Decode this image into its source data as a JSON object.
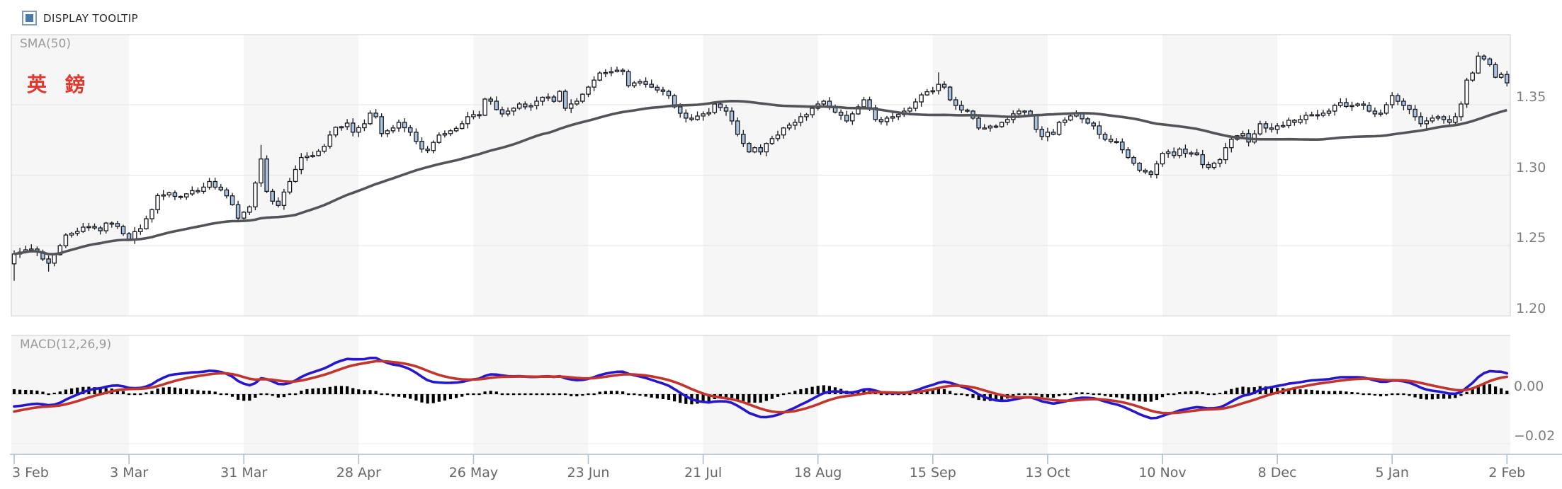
{
  "controls": {
    "tooltip_label": "DISPLAY TOOLTIP",
    "tooltip_checked": true
  },
  "chart": {
    "title": "英 鎊",
    "overlays": {
      "sma_label": "SMA(50)",
      "macd_label": "MACD(12,26,9)"
    },
    "price_axis": {
      "tick_labels": [
        "1.35",
        "1.30",
        "1.25",
        "1.20"
      ],
      "tick_values": [
        1.35,
        1.3,
        1.25,
        1.2
      ]
    },
    "macd_axis": {
      "tick_labels": [
        "0.00",
        "−0.02"
      ],
      "tick_values": [
        0,
        -0.02
      ]
    },
    "colors": {
      "up_candle": "#ffffff",
      "down_candle": "#a9c3e1",
      "candle_outline": "#17171f",
      "sma_line": "#53535a",
      "macd_line": "#2617cf",
      "signal_line": "#c3342c",
      "histogram": "#000000",
      "title_red": "#e4382e",
      "band_gray": "#f6f6f6",
      "grid": "#e4e4e4",
      "zero_line": "#c8c8c8",
      "panel_border": "#cfcfcf",
      "axis_line": "#c2cdd6",
      "tick_mark": "#aebecb",
      "checkbox_border": "#7c9cb8",
      "checkbox_fill": "#4a7aa8"
    }
  },
  "chart_data": {
    "type": "candlestick_with_macd",
    "instrument": "英 鎊",
    "trading_days": 261,
    "days_per_tick": 20,
    "price_ylim": [
      1.1995,
      1.3997
    ],
    "macd_ylim": [
      -0.0243,
      0.0237
    ],
    "price_gridlines": [
      1.35,
      1.3,
      1.25,
      1.2
    ],
    "macd_gridlines": [
      0,
      -0.02
    ],
    "x_tick_labels": [
      "3 Feb",
      "3 Mar",
      "31 Mar",
      "28 Apr",
      "26 May",
      "23 Jun",
      "21 Jul",
      "18 Aug",
      "15 Sep",
      "13 Oct",
      "10 Nov",
      "8 Dec",
      "5 Jan",
      "2 Feb"
    ],
    "indicators": {
      "sma_period": 50,
      "macd_fast": 12,
      "macd_slow": 26,
      "macd_signal": 9
    },
    "close_keypoints": [
      [
        0,
        1.244
      ],
      [
        2,
        1.247
      ],
      [
        4,
        1.2455
      ],
      [
        5,
        1.2405
      ],
      [
        6,
        1.2375
      ],
      [
        7,
        1.2435
      ],
      [
        9,
        1.2575
      ],
      [
        11,
        1.26
      ],
      [
        13,
        1.2635
      ],
      [
        15,
        1.2605
      ],
      [
        16,
        1.266
      ],
      [
        18,
        1.2635
      ],
      [
        20,
        1.2545
      ],
      [
        22,
        1.262
      ],
      [
        24,
        1.2755
      ],
      [
        25,
        1.2855
      ],
      [
        27,
        1.2875
      ],
      [
        29,
        1.2845
      ],
      [
        31,
        1.289
      ],
      [
        33,
        1.2915
      ],
      [
        34,
        1.2955
      ],
      [
        36,
        1.2895
      ],
      [
        38,
        1.279
      ],
      [
        39,
        1.2695
      ],
      [
        41,
        1.2775
      ],
      [
        43,
        1.3115
      ],
      [
        44,
        1.2885
      ],
      [
        45,
        1.2815
      ],
      [
        46,
        1.2785
      ],
      [
        47,
        1.288
      ],
      [
        48,
        1.2955
      ],
      [
        49,
        1.304
      ],
      [
        50,
        1.3125
      ],
      [
        51,
        1.3135
      ],
      [
        53,
        1.317
      ],
      [
        54,
        1.3205
      ],
      [
        55,
        1.3285
      ],
      [
        56,
        1.334
      ],
      [
        58,
        1.337
      ],
      [
        59,
        1.3305
      ],
      [
        61,
        1.3365
      ],
      [
        62,
        1.344
      ],
      [
        63,
        1.3415
      ],
      [
        64,
        1.3295
      ],
      [
        65,
        1.3315
      ],
      [
        66,
        1.3335
      ],
      [
        67,
        1.3375
      ],
      [
        69,
        1.3305
      ],
      [
        70,
        1.324
      ],
      [
        71,
        1.3185
      ],
      [
        72,
        1.3175
      ],
      [
        74,
        1.3285
      ],
      [
        75,
        1.3295
      ],
      [
        76,
        1.3315
      ],
      [
        78,
        1.3365
      ],
      [
        79,
        1.3415
      ],
      [
        81,
        1.3425
      ],
      [
        82,
        1.354
      ],
      [
        83,
        1.3525
      ],
      [
        84,
        1.3465
      ],
      [
        85,
        1.3435
      ],
      [
        86,
        1.3455
      ],
      [
        88,
        1.3505
      ],
      [
        89,
        1.3485
      ],
      [
        91,
        1.3525
      ],
      [
        93,
        1.3555
      ],
      [
        94,
        1.3525
      ],
      [
        95,
        1.3595
      ],
      [
        96,
        1.3475
      ],
      [
        98,
        1.3525
      ],
      [
        99,
        1.3575
      ],
      [
        100,
        1.3625
      ],
      [
        101,
        1.3675
      ],
      [
        102,
        1.3725
      ],
      [
        104,
        1.3735
      ],
      [
        105,
        1.3745
      ],
      [
        106,
        1.3735
      ],
      [
        107,
        1.3635
      ],
      [
        108,
        1.3655
      ],
      [
        109,
        1.3665
      ],
      [
        110,
        1.3645
      ],
      [
        112,
        1.3605
      ],
      [
        113,
        1.3595
      ],
      [
        114,
        1.3565
      ],
      [
        115,
        1.3485
      ],
      [
        116,
        1.344
      ],
      [
        117,
        1.3405
      ],
      [
        118,
        1.3395
      ],
      [
        120,
        1.3435
      ],
      [
        121,
        1.3445
      ],
      [
        122,
        1.3505
      ],
      [
        123,
        1.348
      ],
      [
        124,
        1.3455
      ],
      [
        125,
        1.3385
      ],
      [
        126,
        1.329
      ],
      [
        127,
        1.3225
      ],
      [
        128,
        1.3165
      ],
      [
        129,
        1.3195
      ],
      [
        130,
        1.3165
      ],
      [
        131,
        1.3225
      ],
      [
        133,
        1.3285
      ],
      [
        134,
        1.3335
      ],
      [
        136,
        1.3375
      ],
      [
        137,
        1.3415
      ],
      [
        139,
        1.3475
      ],
      [
        140,
        1.3505
      ],
      [
        141,
        1.3525
      ],
      [
        142,
        1.348
      ],
      [
        144,
        1.3425
      ],
      [
        145,
        1.3385
      ],
      [
        146,
        1.3435
      ],
      [
        147,
        1.3485
      ],
      [
        148,
        1.3535
      ],
      [
        150,
        1.3395
      ],
      [
        151,
        1.338
      ],
      [
        152,
        1.3405
      ],
      [
        153,
        1.3415
      ],
      [
        155,
        1.3455
      ],
      [
        156,
        1.3475
      ],
      [
        157,
        1.352
      ],
      [
        158,
        1.357
      ],
      [
        160,
        1.36
      ],
      [
        161,
        1.3645
      ],
      [
        162,
        1.3625
      ],
      [
        163,
        1.3535
      ],
      [
        164,
        1.3495
      ],
      [
        166,
        1.3455
      ],
      [
        167,
        1.3405
      ],
      [
        168,
        1.3335
      ],
      [
        169,
        1.3335
      ],
      [
        171,
        1.3345
      ],
      [
        172,
        1.3375
      ],
      [
        173,
        1.3395
      ],
      [
        174,
        1.3435
      ],
      [
        176,
        1.3455
      ],
      [
        177,
        1.3425
      ],
      [
        178,
        1.3325
      ],
      [
        179,
        1.3275
      ],
      [
        180,
        1.3305
      ],
      [
        181,
        1.329
      ],
      [
        182,
        1.3375
      ],
      [
        184,
        1.342
      ],
      [
        185,
        1.3435
      ],
      [
        186,
        1.34
      ],
      [
        187,
        1.337
      ],
      [
        188,
        1.335
      ],
      [
        189,
        1.329
      ],
      [
        190,
        1.3255
      ],
      [
        192,
        1.3235
      ],
      [
        193,
        1.318
      ],
      [
        194,
        1.3125
      ],
      [
        195,
        1.3085
      ],
      [
        196,
        1.3035
      ],
      [
        198,
        1.3005
      ],
      [
        199,
        1.308
      ],
      [
        200,
        1.3155
      ],
      [
        201,
        1.3165
      ],
      [
        202,
        1.314
      ],
      [
        203,
        1.3185
      ],
      [
        204,
        1.3155
      ],
      [
        206,
        1.3145
      ],
      [
        207,
        1.3075
      ],
      [
        208,
        1.3055
      ],
      [
        209,
        1.3085
      ],
      [
        210,
        1.311
      ],
      [
        211,
        1.3195
      ],
      [
        212,
        1.3255
      ],
      [
        213,
        1.328
      ],
      [
        214,
        1.3295
      ],
      [
        215,
        1.3235
      ],
      [
        217,
        1.3365
      ],
      [
        218,
        1.3335
      ],
      [
        219,
        1.3325
      ],
      [
        220,
        1.335
      ],
      [
        222,
        1.339
      ],
      [
        223,
        1.3375
      ],
      [
        224,
        1.3395
      ],
      [
        225,
        1.3425
      ],
      [
        227,
        1.3425
      ],
      [
        228,
        1.344
      ],
      [
        229,
        1.3455
      ],
      [
        230,
        1.3495
      ],
      [
        231,
        1.3515
      ],
      [
        233,
        1.3495
      ],
      [
        234,
        1.3505
      ],
      [
        235,
        1.3495
      ],
      [
        236,
        1.3455
      ],
      [
        238,
        1.344
      ],
      [
        239,
        1.35
      ],
      [
        240,
        1.3565
      ],
      [
        241,
        1.3525
      ],
      [
        242,
        1.3495
      ],
      [
        244,
        1.3415
      ],
      [
        245,
        1.3365
      ],
      [
        246,
        1.3385
      ],
      [
        247,
        1.3405
      ],
      [
        248,
        1.3415
      ],
      [
        250,
        1.3375
      ],
      [
        251,
        1.3415
      ],
      [
        252,
        1.3505
      ],
      [
        253,
        1.3675
      ],
      [
        254,
        1.3725
      ],
      [
        255,
        1.3845
      ],
      [
        256,
        1.3825
      ],
      [
        257,
        1.3785
      ],
      [
        258,
        1.3695
      ],
      [
        259,
        1.3715
      ],
      [
        260,
        1.3655
      ]
    ],
    "wick_overrides": [
      [
        0,
        null,
        1.225
      ],
      [
        6,
        null,
        1.2315
      ],
      [
        43,
        1.3215,
        null
      ],
      [
        161,
        1.373,
        null
      ],
      [
        240,
        1.359,
        null
      ],
      [
        255,
        1.3875,
        null
      ]
    ]
  }
}
